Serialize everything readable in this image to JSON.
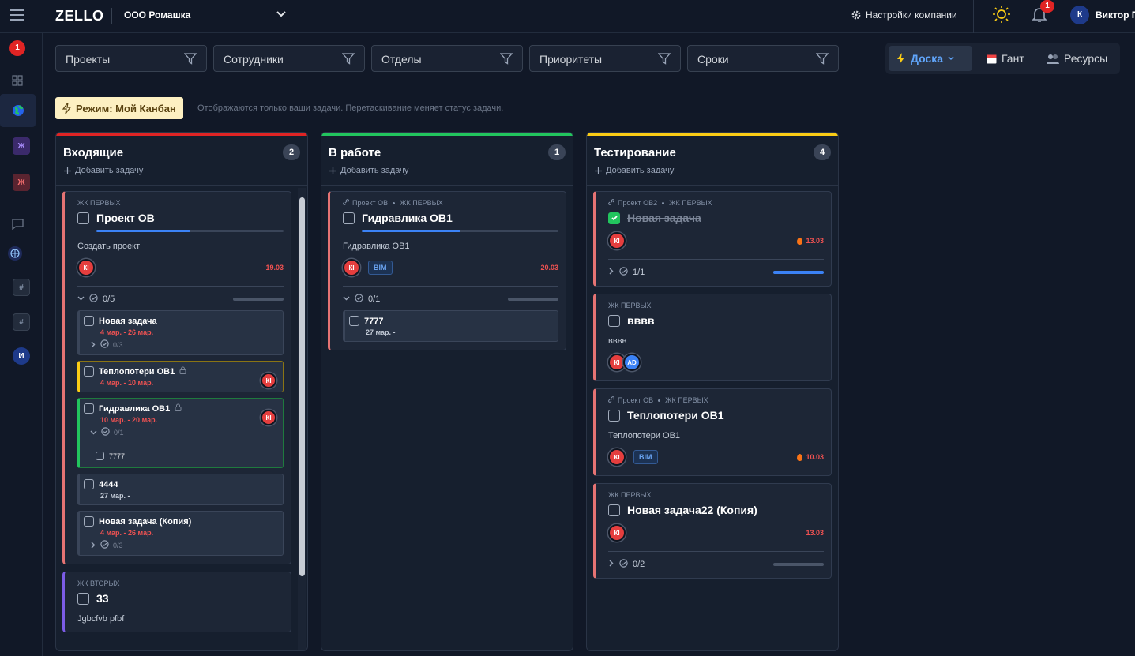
{
  "header": {
    "logo": "ZELLO",
    "company": "ООО Ромашка",
    "settings": "Настройки компании",
    "notifications": "1",
    "user_initial": "К",
    "user_name": "Виктор П"
  },
  "sidebar": {
    "badge": "1",
    "items": [
      "Ж",
      "Ж",
      "#",
      "#",
      "И"
    ]
  },
  "filters": [
    "Проекты",
    "Сотрудники",
    "Отделы",
    "Приоритеты",
    "Сроки"
  ],
  "views": [
    "Доска",
    "Гант",
    "Ресурсы"
  ],
  "mode": {
    "label": "Режим: Мой Канбан",
    "hint": "Отображаются только ваши задачи. Перетаскивание меняет статус задачи."
  },
  "columns": [
    {
      "title": "Входящие",
      "count": "2",
      "color": "#e02424",
      "add": "Добавить задачу",
      "cards": [
        {
          "color": "#e57373",
          "tag": "ЖК ПЕРВЫХ",
          "title": "Проект ОВ",
          "progress": 50,
          "desc": "Создать проект",
          "avatars": [
            {
              "initials": "КІ",
              "color": "#e53e3e"
            }
          ],
          "date": "19.03",
          "checklist": "0/5",
          "checklist_progress": 0,
          "subtasks": [
            {
              "title": "Новая задача",
              "dates": "4 мар. - 26 мар.",
              "overdue": true,
              "checklist": "0/3"
            },
            {
              "title": "Теплопотери ОВ1",
              "dates": "4 мар. - 10 мар.",
              "overdue": true,
              "locked": true,
              "color": "#facc15",
              "avatar": {
                "initials": "КІ",
                "color": "#e53e3e"
              }
            },
            {
              "title": "Гидравлика ОВ1",
              "dates": "10 мар. - 20 мар.",
              "overdue": true,
              "locked": true,
              "color": "#22c55e",
              "avatar": {
                "initials": "КІ",
                "color": "#e53e3e"
              },
              "checklist": "0/1",
              "children": [
                "7777"
              ]
            },
            {
              "title": "4444",
              "dates": "27 мар. -",
              "overdue": false
            },
            {
              "title": "Новая задача (Копия)",
              "dates": "4 мар. - 26 мар.",
              "overdue": true,
              "checklist": "0/3"
            }
          ]
        },
        {
          "color": "#7c5ce6",
          "tag": "ЖК ВТОРЫХ",
          "title": "33",
          "desc": "Jgbcfvb pfbf"
        }
      ]
    },
    {
      "title": "В работе",
      "count": "1",
      "color": "#22c55e",
      "add": "Добавить задачу",
      "cards": [
        {
          "color": "#e57373",
          "project": "Проект ОВ",
          "tag": "ЖК ПЕРВЫХ",
          "title": "Гидравлика ОВ1",
          "progress": 50,
          "desc": "Гидравлика ОВ1",
          "avatars": [
            {
              "initials": "КІ",
              "color": "#e53e3e"
            }
          ],
          "bim": "BIM",
          "date": "20.03",
          "checklist": "0/1",
          "checklist_progress": 0,
          "subtasks": [
            {
              "title": "7777",
              "dates": "27 мар. -",
              "overdue": false
            }
          ]
        }
      ]
    },
    {
      "title": "Тестирование",
      "count": "4",
      "color": "#facc15",
      "add": "Добавить задачу",
      "cards": [
        {
          "color": "#e57373",
          "project": "Проект ОВ2",
          "tag": "ЖК ПЕРВЫХ",
          "title": "Новая задача",
          "done": true,
          "avatars": [
            {
              "initials": "КІ",
              "color": "#e53e3e"
            }
          ],
          "date": "13.03",
          "hot": true,
          "checklist": "1/1",
          "checklist_progress": 100
        },
        {
          "color": "#e57373",
          "tag": "ЖК ПЕРВЫХ",
          "title": "вввв",
          "desc": "вввв",
          "avatars": [
            {
              "initials": "КІ",
              "color": "#e53e3e"
            },
            {
              "initials": "AD",
              "color": "#3b82f6"
            }
          ]
        },
        {
          "color": "#e57373",
          "project": "Проект ОВ",
          "tag": "ЖК ПЕРВЫХ",
          "title": "Теплопотери ОВ1",
          "desc": "Теплопотери ОВ1",
          "avatars": [
            {
              "initials": "КІ",
              "color": "#e53e3e"
            }
          ],
          "bim": "BIM",
          "date": "10.03",
          "hot": true
        },
        {
          "color": "#e57373",
          "tag": "ЖК ПЕРВЫХ",
          "title": "Новая задача22 (Копия)",
          "avatars": [
            {
              "initials": "КІ",
              "color": "#e53e3e"
            }
          ],
          "date": "13.03",
          "checklist": "0/2",
          "checklist_progress": 0
        }
      ]
    }
  ]
}
